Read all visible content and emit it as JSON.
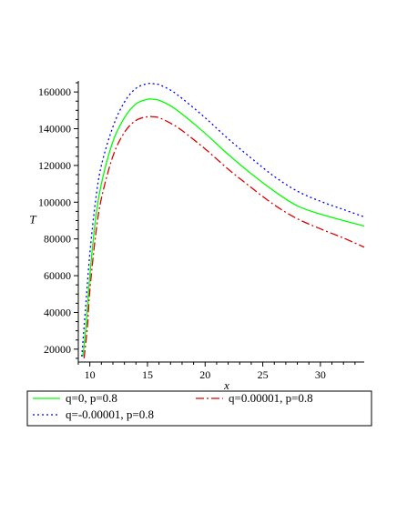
{
  "chart_data": {
    "type": "line",
    "title": "",
    "xlabel": "x",
    "ylabel": "T",
    "xlim": [
      9,
      33.8
    ],
    "ylim": [
      13000,
      166000
    ],
    "x_ticks": [
      10,
      15,
      20,
      25,
      30
    ],
    "x_tick_labels": [
      "10",
      "15",
      "20",
      "25",
      "30"
    ],
    "y_ticks": [
      20000,
      40000,
      60000,
      80000,
      100000,
      120000,
      140000,
      160000
    ],
    "y_tick_labels": [
      "20000",
      "40000",
      "60000",
      "80000",
      "100000",
      "120000",
      "140000",
      "160000"
    ],
    "grid": false,
    "legend_position": "bottom",
    "series": [
      {
        "name": "q=0, p=0.8",
        "color": "#00ff00",
        "dash": "solid",
        "x": [
          9.4,
          9.7,
          10,
          10.5,
          11,
          12,
          13,
          14,
          15,
          15.5,
          16,
          17,
          18,
          20,
          22,
          24,
          26,
          28,
          30,
          32,
          33.8
        ],
        "y": [
          16000,
          35000,
          60000,
          91000,
          110000,
          133000,
          146000,
          153500,
          156000,
          156000,
          155500,
          152500,
          148000,
          137500,
          126000,
          115500,
          106000,
          98000,
          93500,
          90000,
          87000
        ]
      },
      {
        "name": "q=0.00001, p=0.8",
        "color": "#dd0000",
        "dash": "dashdot",
        "x": [
          9.5,
          9.8,
          10,
          10.5,
          11,
          12,
          13,
          14,
          15,
          15.5,
          16,
          17,
          18,
          20,
          22,
          24,
          26,
          28,
          30,
          32,
          33.8
        ],
        "y": [
          15000,
          33000,
          52000,
          82000,
          102000,
          125000,
          138000,
          144500,
          146500,
          146500,
          146000,
          143000,
          139000,
          129000,
          118000,
          108000,
          98500,
          91000,
          85500,
          80500,
          75500
        ]
      },
      {
        "name": "q=-0.00001, p=0.8",
        "color": "#0000ff",
        "dash": "dotted",
        "x": [
          9.3,
          9.6,
          10,
          10.5,
          11,
          12,
          13,
          14,
          15,
          15.5,
          16,
          17,
          18,
          20,
          22,
          24,
          26,
          28,
          30,
          32,
          33.8
        ],
        "y": [
          16000,
          40000,
          72000,
          101000,
          120000,
          141000,
          154500,
          162000,
          164500,
          164500,
          164000,
          161000,
          156500,
          146000,
          134500,
          124000,
          114000,
          106000,
          100500,
          96000,
          92000
        ]
      }
    ]
  }
}
